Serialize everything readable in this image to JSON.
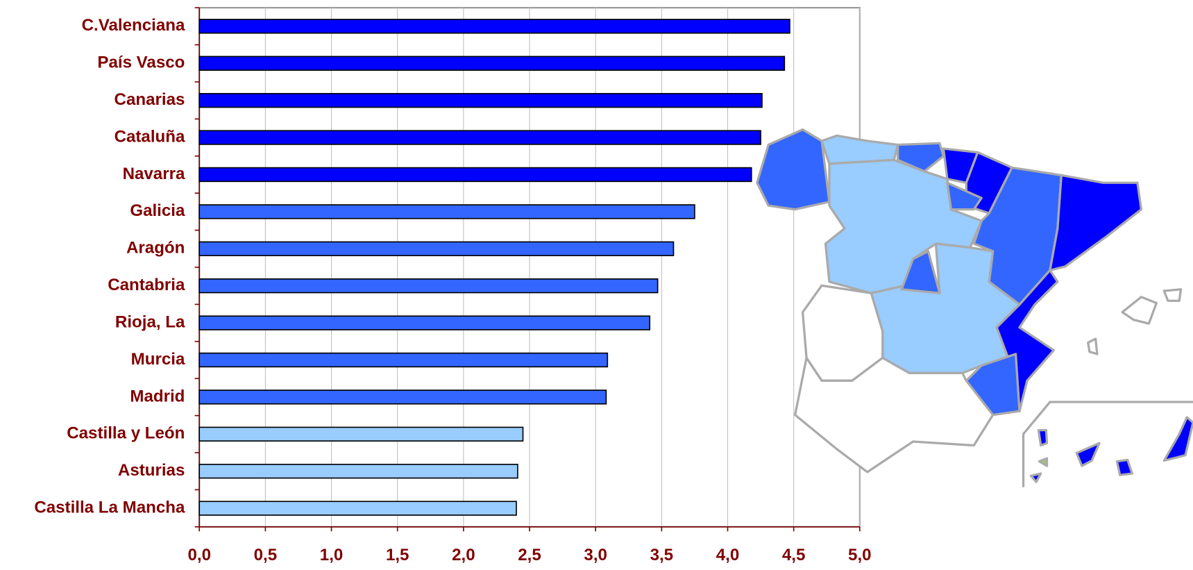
{
  "chart_data": {
    "type": "hbar",
    "categories": [
      "C.Valenciana",
      "País Vasco",
      "Canarias",
      "Cataluña",
      "Navarra",
      "Galicia",
      "Aragón",
      "Cantabria",
      "Rioja, La",
      "Murcia",
      "Madrid",
      "Castilla y León",
      "Asturias",
      "Castilla La Mancha"
    ],
    "values": [
      4.47,
      4.43,
      4.26,
      4.25,
      4.18,
      3.75,
      3.59,
      3.47,
      3.41,
      3.09,
      3.08,
      2.45,
      2.41,
      2.4
    ],
    "colors": [
      "#0000ff",
      "#0000ff",
      "#0000ff",
      "#0000ff",
      "#0000ff",
      "#3366ff",
      "#3366ff",
      "#3366ff",
      "#3366ff",
      "#3366ff",
      "#3366ff",
      "#99ccff",
      "#99ccff",
      "#99ccff"
    ],
    "xlim": [
      0,
      5
    ],
    "xticks": [
      {
        "value": 0,
        "label": "0,0"
      },
      {
        "value": 0.5,
        "label": "0,5"
      },
      {
        "value": 1,
        "label": "1,0"
      },
      {
        "value": 1.5,
        "label": "1,5"
      },
      {
        "value": 2,
        "label": "2,0"
      },
      {
        "value": 2.5,
        "label": "2,5"
      },
      {
        "value": 3,
        "label": "3,0"
      },
      {
        "value": 3.5,
        "label": "3,5"
      },
      {
        "value": 4,
        "label": "4,0"
      },
      {
        "value": 4.5,
        "label": "4,5"
      },
      {
        "value": 5,
        "label": "5,0"
      }
    ],
    "grid": true
  }
}
